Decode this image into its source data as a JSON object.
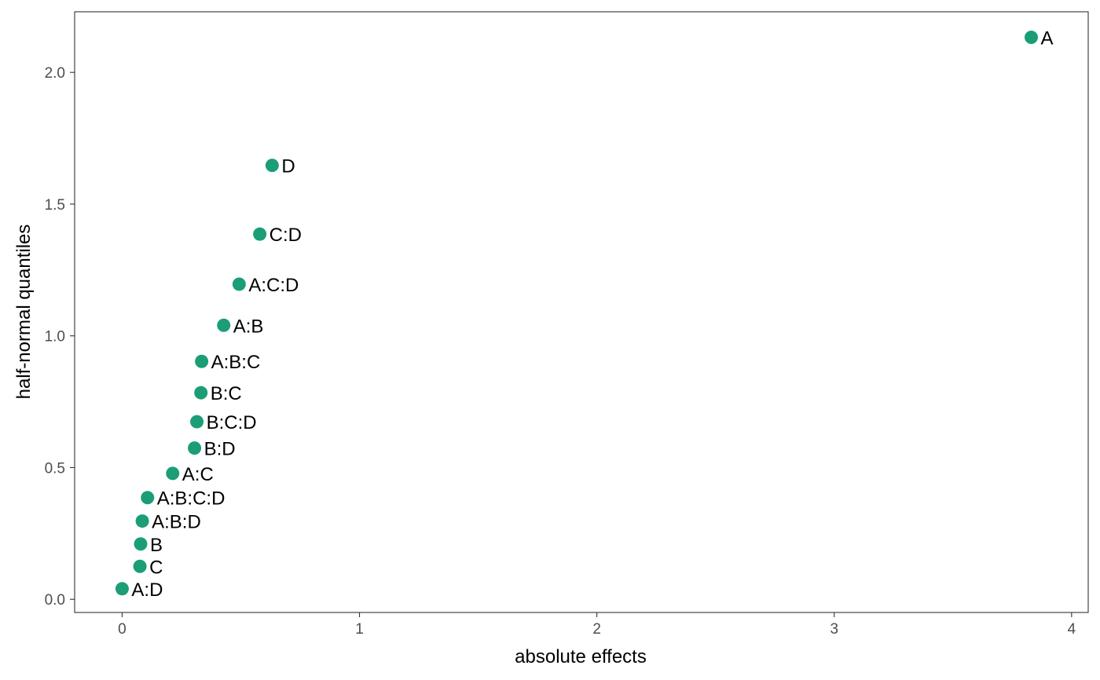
{
  "colors": {
    "point": "#1b9e77",
    "panel_border": "#333333",
    "tick": "#333333",
    "tick_label": "#4d4d4d",
    "text": "#000000",
    "background": "#ffffff"
  },
  "chart_data": {
    "type": "scatter",
    "title": "",
    "xlabel": "absolute effects",
    "ylabel": "half-normal quantiles",
    "xlim": [
      -0.2,
      4.07
    ],
    "ylim": [
      -0.05,
      2.23
    ],
    "xticks": [
      0,
      1,
      2,
      3,
      4
    ],
    "xtick_labels": [
      "0",
      "1",
      "2",
      "3",
      "4"
    ],
    "yticks": [
      0.0,
      0.5,
      1.0,
      1.5,
      2.0
    ],
    "ytick_labels": [
      "0.0",
      "0.5",
      "1.0",
      "1.5",
      "2.0"
    ],
    "grid": false,
    "legend": "none",
    "points": [
      {
        "label": "A:D",
        "x": 0.0,
        "y": 0.04
      },
      {
        "label": "C",
        "x": 0.075,
        "y": 0.125
      },
      {
        "label": "B",
        "x": 0.078,
        "y": 0.21
      },
      {
        "label": "A:B:D",
        "x": 0.085,
        "y": 0.297
      },
      {
        "label": "A:B:C:D",
        "x": 0.107,
        "y": 0.386
      },
      {
        "label": "A:C",
        "x": 0.213,
        "y": 0.478
      },
      {
        "label": "B:D",
        "x": 0.305,
        "y": 0.574
      },
      {
        "label": "B:C:D",
        "x": 0.315,
        "y": 0.674
      },
      {
        "label": "B:C",
        "x": 0.332,
        "y": 0.784
      },
      {
        "label": "A:B:C",
        "x": 0.335,
        "y": 0.903
      },
      {
        "label": "A:B",
        "x": 0.428,
        "y": 1.04
      },
      {
        "label": "A:C:D",
        "x": 0.493,
        "y": 1.196
      },
      {
        "label": "C:D",
        "x": 0.58,
        "y": 1.386
      },
      {
        "label": "D",
        "x": 0.632,
        "y": 1.647
      },
      {
        "label": "A",
        "x": 3.83,
        "y": 2.133
      }
    ]
  }
}
